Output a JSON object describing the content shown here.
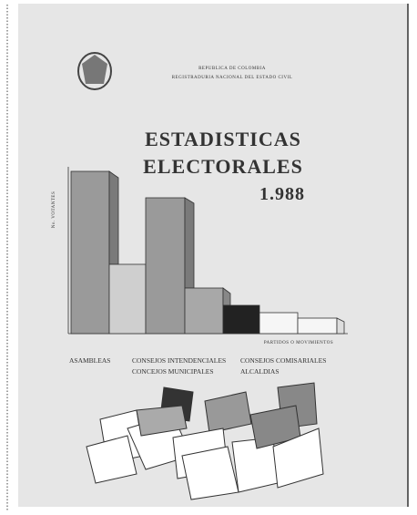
{
  "header": {
    "country": "REPUBLICA DE COLOMBIA",
    "institution": "REGISTRADURIA NACIONAL DEL ESTADO CIVIL"
  },
  "title": {
    "line1": "ESTADISTICAS",
    "line2": "ELECTORALES",
    "year": "1.988"
  },
  "figure": {
    "y_label": "No. VOTANTES",
    "x_label": "PARTIDOS O MOVIMIENTOS"
  },
  "labels": {
    "asambleas": "ASAMBLEAS",
    "intendenciales": "CONSEJOS INTENDENCIALES",
    "comisariales": "CONSEJOS COMISARIALES",
    "municipales": "CONCEJOS MUNICIPALES",
    "alcaldias": "ALCALDIAS"
  }
}
